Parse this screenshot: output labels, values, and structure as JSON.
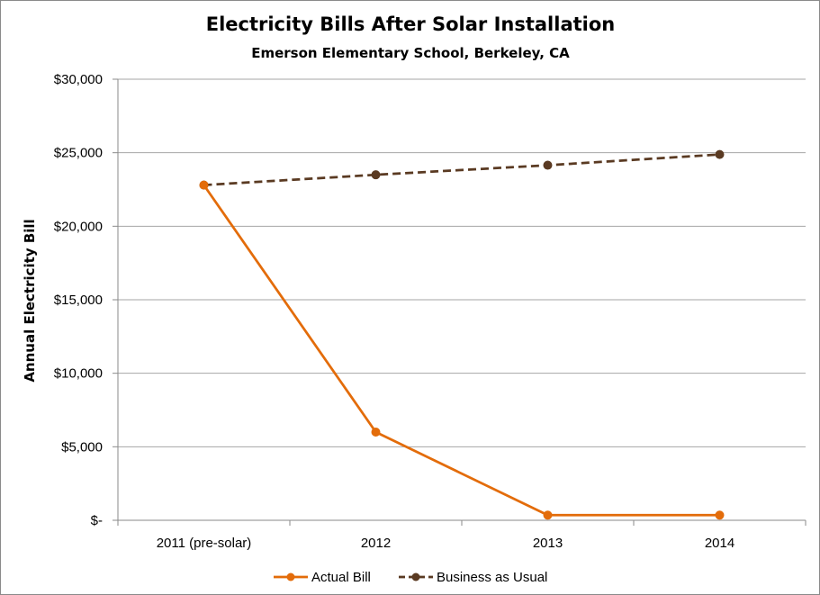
{
  "chart_data": {
    "type": "line",
    "title": "Electricity Bills After Solar Installation",
    "subtitle": "Emerson Elementary School, Berkeley, CA",
    "xlabel": "",
    "ylabel": "Annual Electricity Bill",
    "categories": [
      "2011 (pre-solar)",
      "2012",
      "2013",
      "2014"
    ],
    "ylim": [
      0,
      30000
    ],
    "yticks": [
      0,
      5000,
      10000,
      15000,
      20000,
      25000,
      30000
    ],
    "ytick_labels": [
      "$-",
      "$5,000",
      "$10,000",
      "$15,000",
      "$20,000",
      "$25,000",
      "$30,000"
    ],
    "grid": true,
    "legend_position": "bottom",
    "series": [
      {
        "name": "Actual Bill",
        "values": [
          22800,
          6000,
          350,
          350
        ],
        "color": "#e36c0a",
        "line_style": "solid",
        "marker": "circle"
      },
      {
        "name": "Business as Usual",
        "values": [
          22800,
          23500,
          24150,
          24880
        ],
        "color": "#5a3a22",
        "line_style": "dashed",
        "marker": "circle"
      }
    ]
  }
}
